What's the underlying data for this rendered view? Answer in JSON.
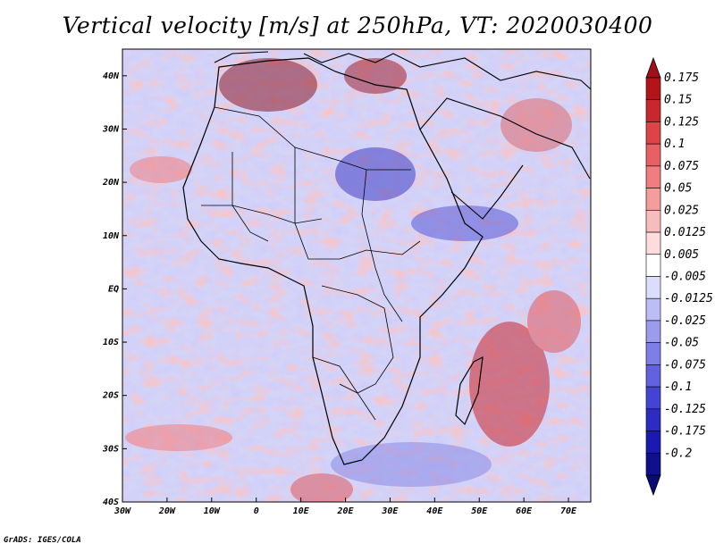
{
  "title": "Vertical velocity [m/s] at 250hPa, VT: 2020030400",
  "footer": "GrADS: IGES/COLA",
  "map": {
    "lon_range": [
      -30,
      75
    ],
    "lat_range": [
      -40,
      45
    ],
    "lon_ticks": [
      "30W",
      "20W",
      "10W",
      "0",
      "10E",
      "20E",
      "30E",
      "40E",
      "50E",
      "60E",
      "70E"
    ],
    "lon_tick_values": [
      -30,
      -20,
      -10,
      0,
      10,
      20,
      30,
      40,
      50,
      60,
      70
    ],
    "lat_ticks": [
      "40N",
      "30N",
      "20N",
      "10N",
      "EQ",
      "10S",
      "20S",
      "30S",
      "40S"
    ],
    "lat_tick_values": [
      40,
      30,
      20,
      10,
      0,
      -10,
      -20,
      -30,
      -40
    ]
  },
  "colorbar": {
    "labels": [
      "0.175",
      "0.15",
      "0.125",
      "0.1",
      "0.075",
      "0.05",
      "0.025",
      "0.0125",
      "0.005",
      "-0.005",
      "-0.0125",
      "-0.025",
      "-0.05",
      "-0.075",
      "-0.1",
      "-0.125",
      "-0.175",
      "-0.2"
    ],
    "colors": [
      "#b3141a",
      "#c8282d",
      "#dc4448",
      "#e86064",
      "#f07e80",
      "#f59c9d",
      "#f9bcbc",
      "#fcdcdc",
      "#ffffff",
      "#dcdcfc",
      "#bcbcf6",
      "#9c9cee",
      "#7e7ee8",
      "#6262e0",
      "#4444d4",
      "#2c2cc4",
      "#1a1ab0",
      "#10108c"
    ]
  }
}
